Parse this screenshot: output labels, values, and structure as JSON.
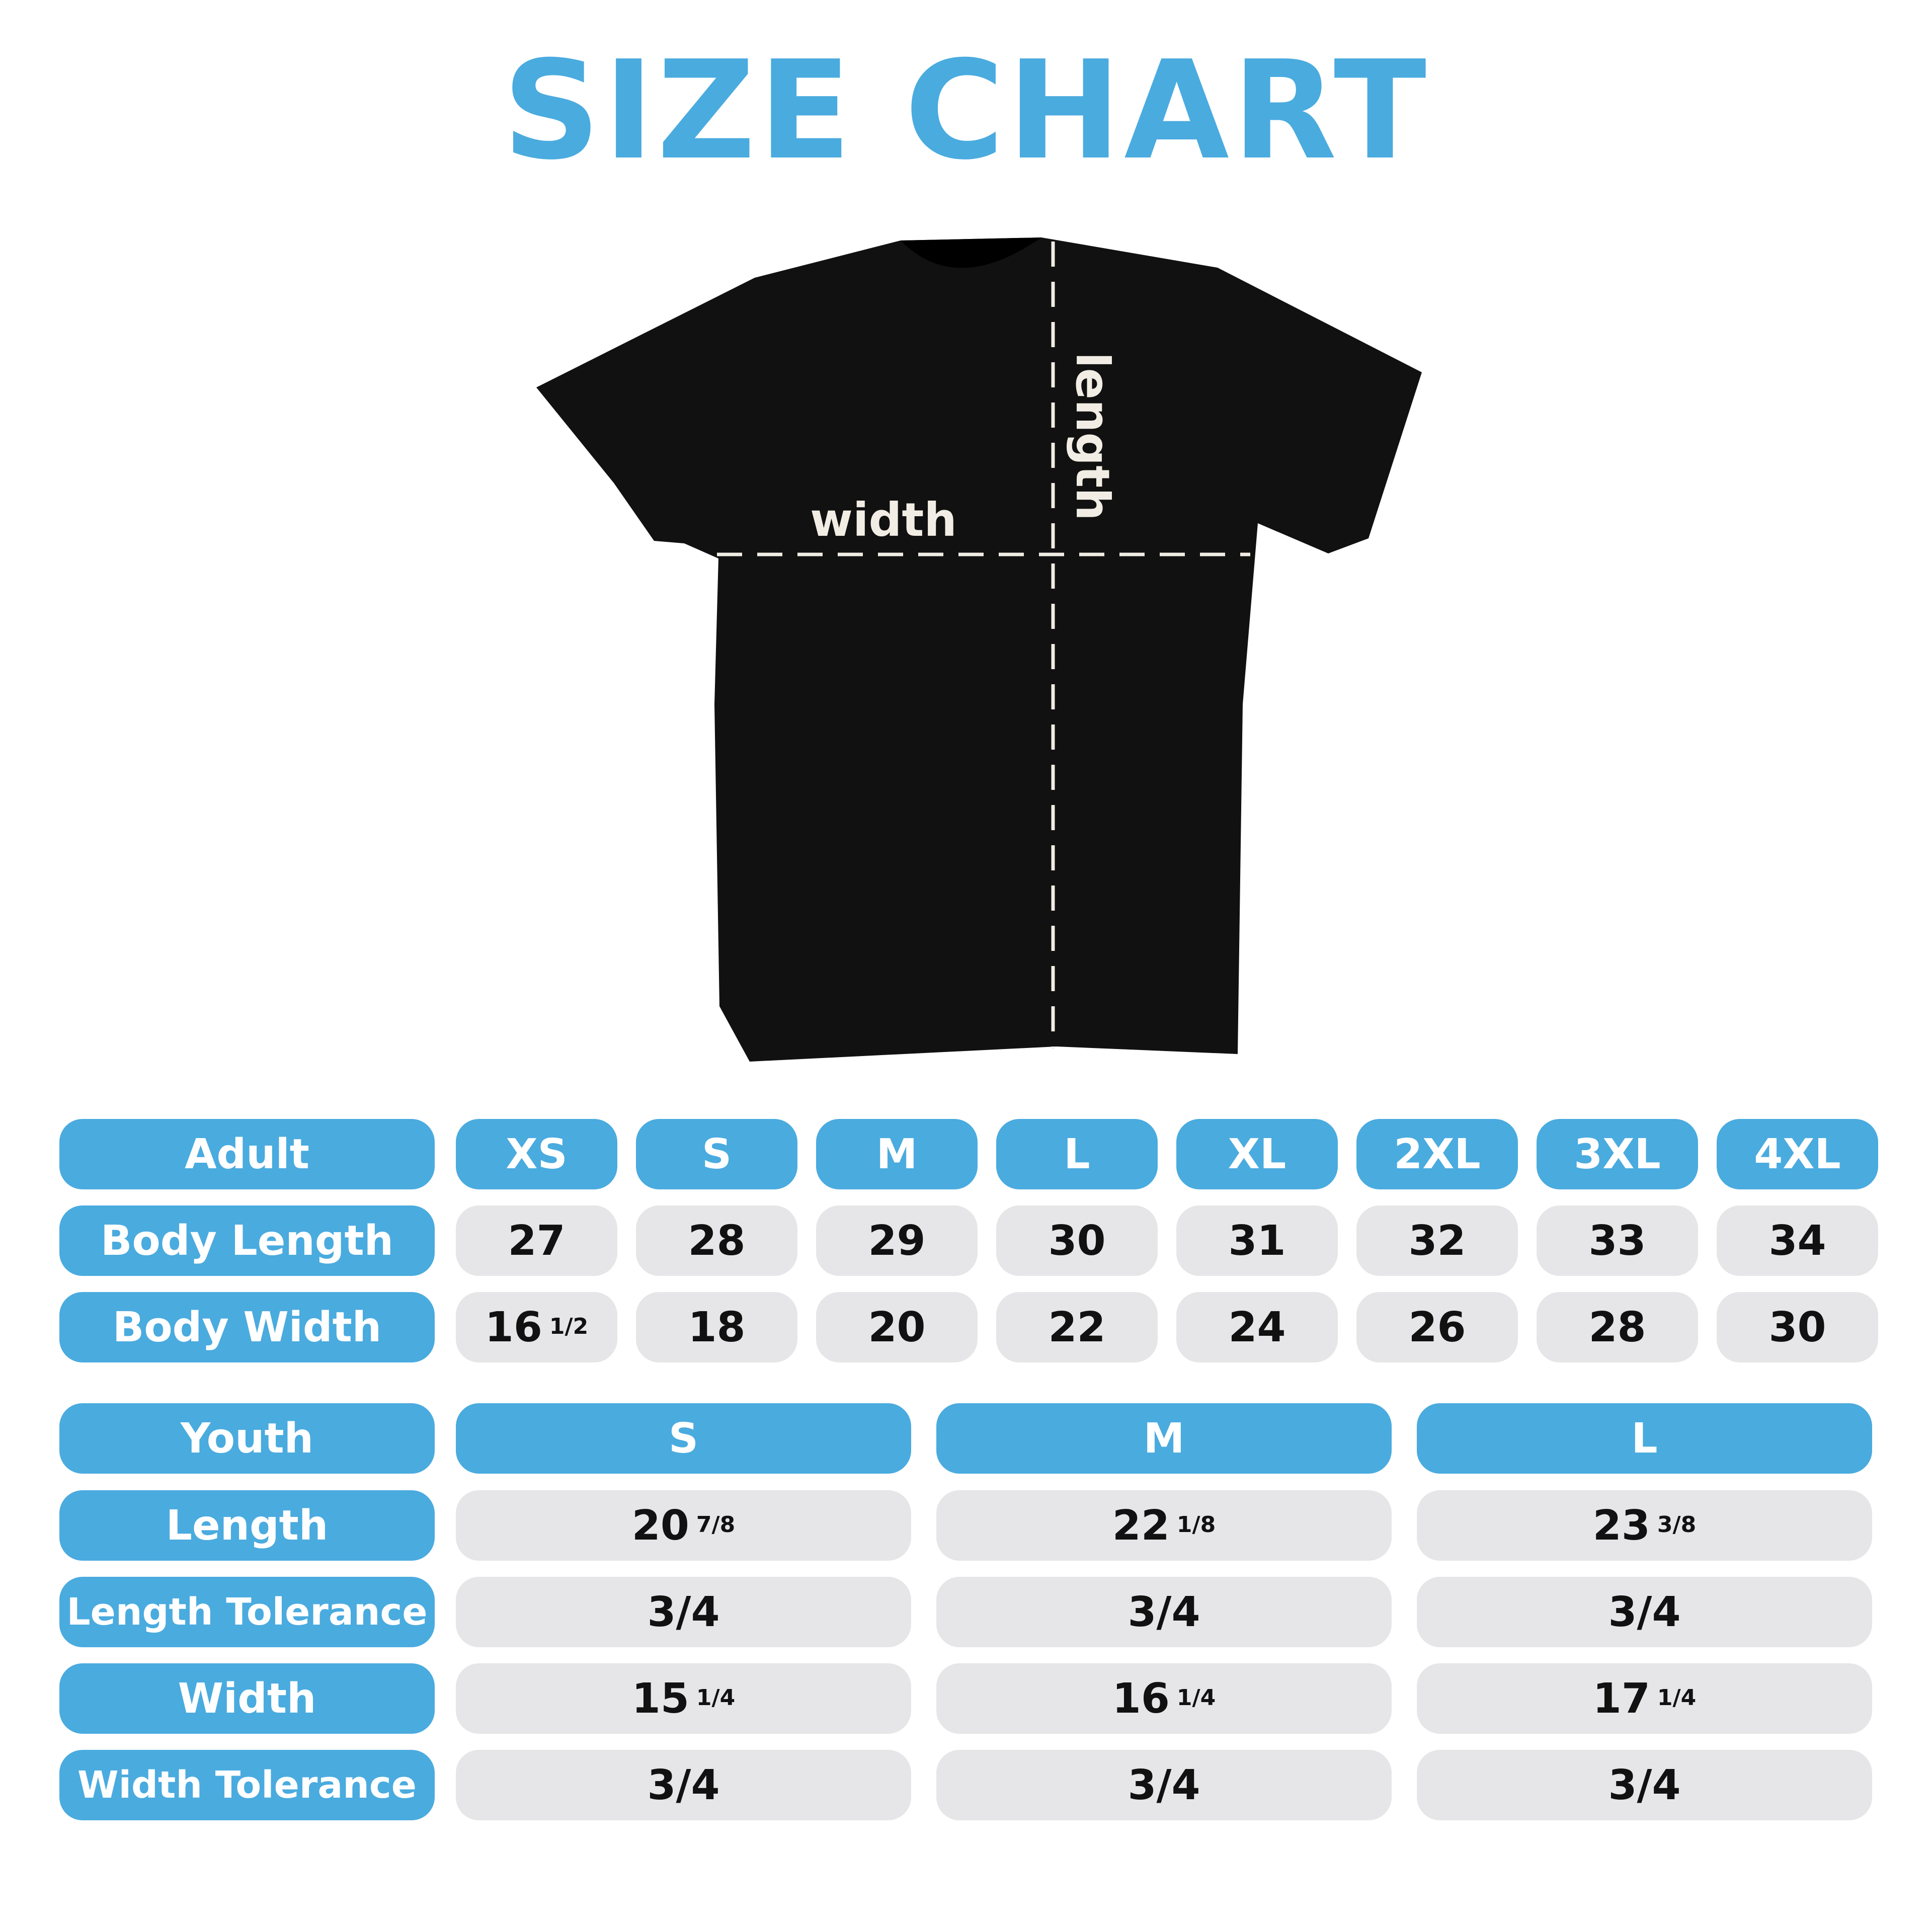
{
  "title": "SIZE CHART",
  "shirt": {
    "width_label": "width",
    "length_label": "length",
    "shirt_color": "#111111",
    "line_color": "#f2ede4"
  },
  "colors": {
    "accent": "#4aabdf",
    "cell": "#e6e6e8",
    "text": "#111111"
  },
  "adult": {
    "header": "Adult",
    "sizes": [
      "XS",
      "S",
      "M",
      "L",
      "XL",
      "2XL",
      "3XL",
      "4XL"
    ],
    "rows": [
      {
        "label": "Body Length",
        "values": [
          {
            "whole": "27",
            "frac": ""
          },
          {
            "whole": "28",
            "frac": ""
          },
          {
            "whole": "29",
            "frac": ""
          },
          {
            "whole": "30",
            "frac": ""
          },
          {
            "whole": "31",
            "frac": ""
          },
          {
            "whole": "32",
            "frac": ""
          },
          {
            "whole": "33",
            "frac": ""
          },
          {
            "whole": "34",
            "frac": ""
          }
        ]
      },
      {
        "label": "Body Width",
        "values": [
          {
            "whole": "16",
            "frac": "1/2"
          },
          {
            "whole": "18",
            "frac": ""
          },
          {
            "whole": "20",
            "frac": ""
          },
          {
            "whole": "22",
            "frac": ""
          },
          {
            "whole": "24",
            "frac": ""
          },
          {
            "whole": "26",
            "frac": ""
          },
          {
            "whole": "28",
            "frac": ""
          },
          {
            "whole": "30",
            "frac": ""
          }
        ]
      }
    ]
  },
  "youth": {
    "header": "Youth",
    "sizes": [
      "S",
      "M",
      "L"
    ],
    "rows": [
      {
        "label": "Length",
        "values": [
          {
            "whole": "20",
            "frac": "7/8"
          },
          {
            "whole": "22",
            "frac": "1/8"
          },
          {
            "whole": "23",
            "frac": "3/8"
          }
        ]
      },
      {
        "label": "Length Tolerance",
        "values": [
          {
            "whole": "3/4",
            "frac": ""
          },
          {
            "whole": "3/4",
            "frac": ""
          },
          {
            "whole": "3/4",
            "frac": ""
          }
        ]
      },
      {
        "label": "Width",
        "values": [
          {
            "whole": "15",
            "frac": "1/4"
          },
          {
            "whole": "16",
            "frac": "1/4"
          },
          {
            "whole": "17",
            "frac": "1/4"
          }
        ]
      },
      {
        "label": "Width Tolerance",
        "values": [
          {
            "whole": "3/4",
            "frac": ""
          },
          {
            "whole": "3/4",
            "frac": ""
          },
          {
            "whole": "3/4",
            "frac": ""
          }
        ]
      }
    ]
  }
}
